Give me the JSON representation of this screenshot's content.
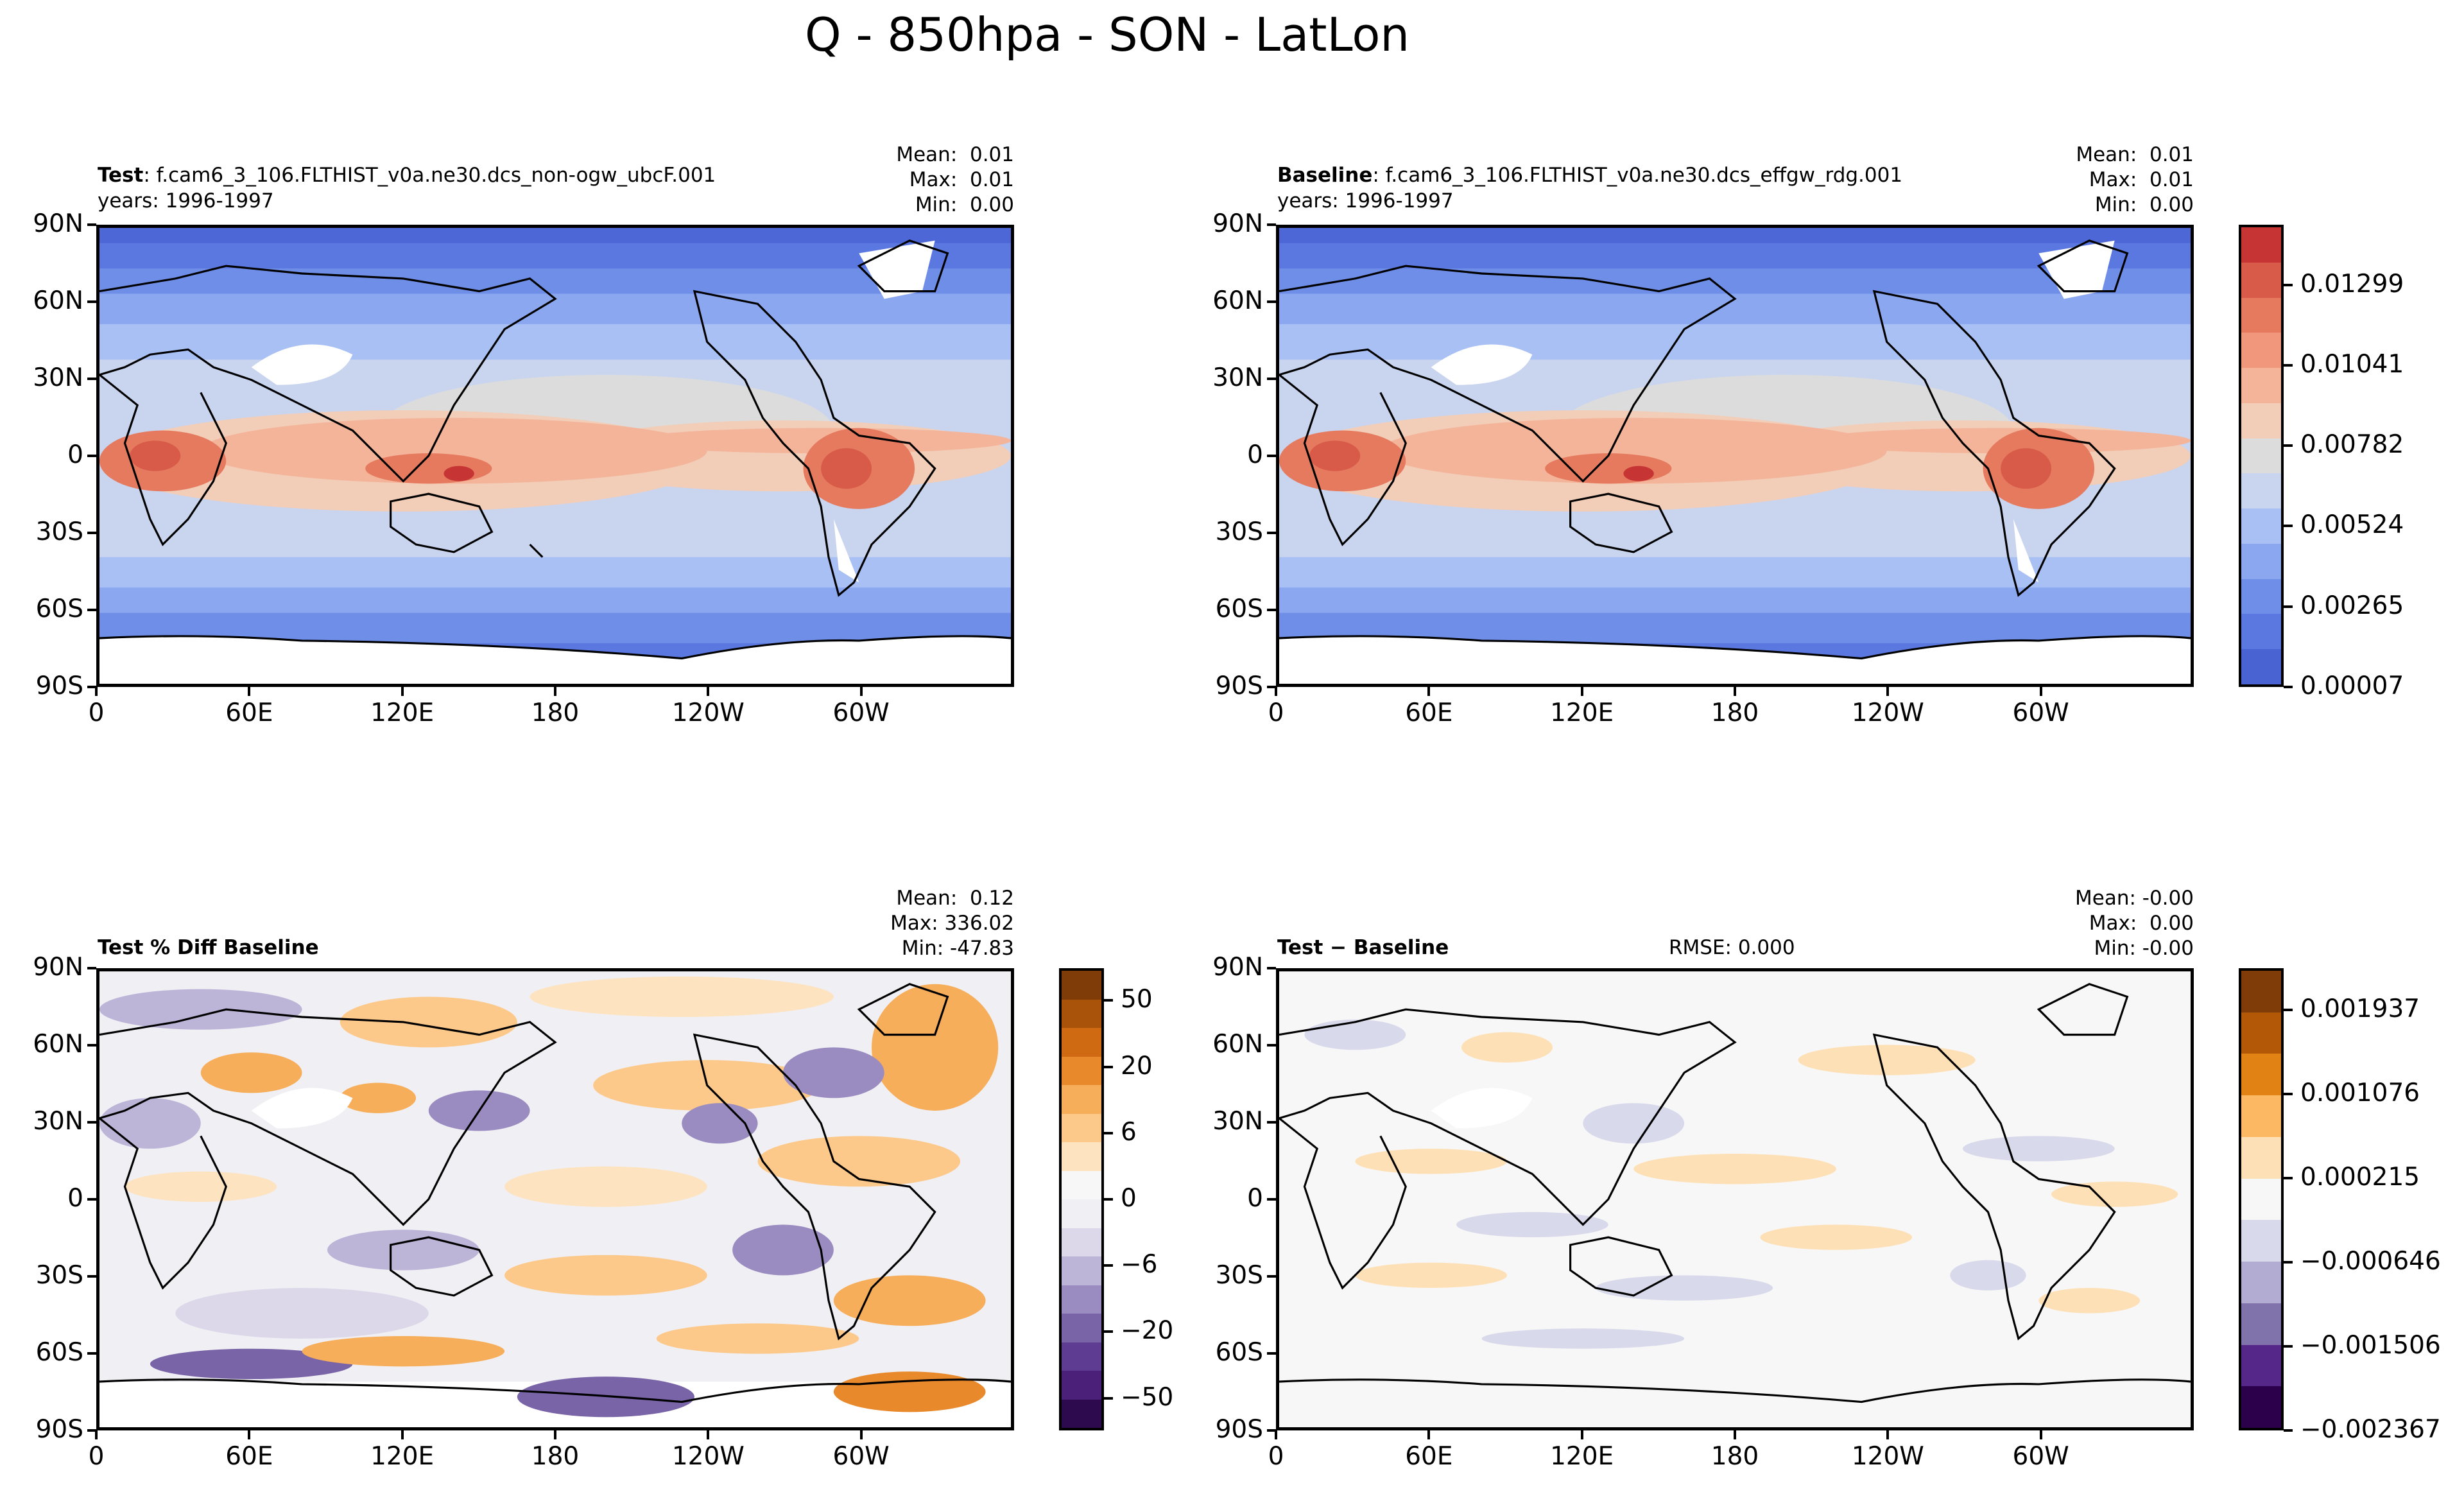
{
  "figure": {
    "suptitle": "Q - 850hpa - SON - LatLon",
    "lat_ticks": [
      "90N",
      "60N",
      "30N",
      "0",
      "30S",
      "60S",
      "90S"
    ],
    "lon_ticks": [
      "0",
      "60E",
      "120E",
      "180",
      "120W",
      "60W"
    ]
  },
  "panels": {
    "test": {
      "label": "Test",
      "case": ": f.cam6_3_106.FLTHIST_v0a.ne30.dcs_non-ogw_ubcF.001",
      "years": "years: 1996-1997",
      "mean": "Mean:  0.01",
      "max": "Max:  0.01",
      "min": "Min:  0.00"
    },
    "baseline": {
      "label": "Baseline",
      "case": ": f.cam6_3_106.FLTHIST_v0a.ne30.dcs_effgw_rdg.001",
      "years": "years: 1996-1997",
      "mean": "Mean:  0.01",
      "max": "Max:  0.01",
      "min": "Min:  0.00"
    },
    "pctdiff": {
      "label": "Test % Diff Baseline",
      "mean": "Mean:  0.12",
      "max": "Max: 336.02",
      "min": "Min: -47.83"
    },
    "diff": {
      "label": "Test − Baseline",
      "rmse": "RMSE: 0.000",
      "mean": "Mean: -0.00",
      "max": "Max:  0.00",
      "min": "Min: -0.00"
    }
  },
  "colorbars": {
    "field": {
      "labels": [
        "0.00007",
        "0.00265",
        "0.00524",
        "0.00782",
        "0.01041",
        "0.01299"
      ],
      "colors": [
        "#4a63d2",
        "#5a78e0",
        "#6f8ee8",
        "#8ba7f0",
        "#a9c0f4",
        "#c9d5ef",
        "#dcdcdc",
        "#f2cdb8",
        "#f4b49a",
        "#f1987c",
        "#e57a5f",
        "#d85a48",
        "#c63433"
      ]
    },
    "pctdiff": {
      "labels": [
        "−50",
        "−20",
        "−6",
        "0",
        "6",
        "20",
        "50"
      ],
      "colors": [
        "#2d0a4e",
        "#4a2078",
        "#5e3c92",
        "#7a64a8",
        "#9a8cc0",
        "#bdb5d8",
        "#dcd8ea",
        "#f0eff4",
        "#f7f7f7",
        "#fde3c0",
        "#fdc98a",
        "#f6ae5a",
        "#e88a2c",
        "#cf6a12",
        "#a8520a",
        "#7f3b08"
      ]
    },
    "diff": {
      "labels": [
        "−0.002367",
        "−0.001506",
        "−0.000646",
        "0.000215",
        "0.001076",
        "0.001937"
      ],
      "colors": [
        "#2d004b",
        "#542788",
        "#8073ac",
        "#b2abd2",
        "#d8daeb",
        "#f7f7f7",
        "#fee0b6",
        "#fdb863",
        "#e08214",
        "#b35806",
        "#7f3b08"
      ]
    }
  }
}
